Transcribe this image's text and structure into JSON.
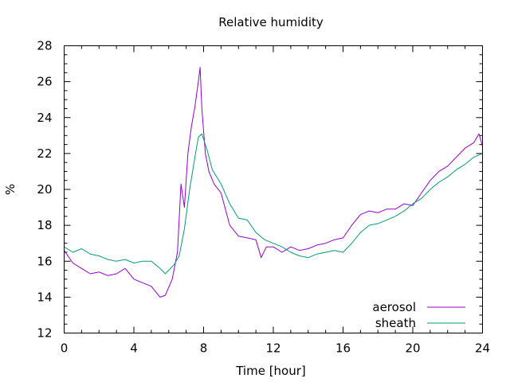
{
  "chart_data": {
    "type": "line",
    "title": "Relative humidity",
    "xlabel": "Time [hour]",
    "ylabel": "%",
    "xlim": [
      0,
      24
    ],
    "ylim": [
      12,
      28
    ],
    "xticks": [
      0,
      4,
      8,
      12,
      16,
      20,
      24
    ],
    "yticks": [
      12,
      14,
      16,
      18,
      20,
      22,
      24,
      26,
      28
    ],
    "grid": false,
    "legend_position": "bottom-right",
    "series": [
      {
        "name": "aerosol",
        "color": "#9400d3",
        "points": [
          [
            0.0,
            16.6
          ],
          [
            0.5,
            15.9
          ],
          [
            1.0,
            15.6
          ],
          [
            1.5,
            15.3
          ],
          [
            2.0,
            15.4
          ],
          [
            2.5,
            15.2
          ],
          [
            3.0,
            15.3
          ],
          [
            3.5,
            15.6
          ],
          [
            4.0,
            15.0
          ],
          [
            4.5,
            14.8
          ],
          [
            5.0,
            14.6
          ],
          [
            5.5,
            14.0
          ],
          [
            5.8,
            14.1
          ],
          [
            6.2,
            15.0
          ],
          [
            6.5,
            16.5
          ],
          [
            6.7,
            20.3
          ],
          [
            6.9,
            19.0
          ],
          [
            7.1,
            22.0
          ],
          [
            7.3,
            23.5
          ],
          [
            7.5,
            24.6
          ],
          [
            7.7,
            26.0
          ],
          [
            7.8,
            26.8
          ],
          [
            7.9,
            24.5
          ],
          [
            8.1,
            22.0
          ],
          [
            8.3,
            21.0
          ],
          [
            8.6,
            20.3
          ],
          [
            9.0,
            19.8
          ],
          [
            9.5,
            18.0
          ],
          [
            10.0,
            17.4
          ],
          [
            10.5,
            17.3
          ],
          [
            11.0,
            17.2
          ],
          [
            11.3,
            16.2
          ],
          [
            11.6,
            16.8
          ],
          [
            12.0,
            16.8
          ],
          [
            12.5,
            16.5
          ],
          [
            13.0,
            16.8
          ],
          [
            13.5,
            16.6
          ],
          [
            14.0,
            16.7
          ],
          [
            14.5,
            16.9
          ],
          [
            15.0,
            17.0
          ],
          [
            15.5,
            17.2
          ],
          [
            16.0,
            17.3
          ],
          [
            16.5,
            18.0
          ],
          [
            17.0,
            18.6
          ],
          [
            17.5,
            18.8
          ],
          [
            18.0,
            18.7
          ],
          [
            18.5,
            18.9
          ],
          [
            19.0,
            18.9
          ],
          [
            19.5,
            19.2
          ],
          [
            20.0,
            19.1
          ],
          [
            20.5,
            19.8
          ],
          [
            21.0,
            20.5
          ],
          [
            21.5,
            21.0
          ],
          [
            22.0,
            21.3
          ],
          [
            22.5,
            21.8
          ],
          [
            23.0,
            22.3
          ],
          [
            23.5,
            22.6
          ],
          [
            23.8,
            23.1
          ],
          [
            24.0,
            22.4
          ]
        ]
      },
      {
        "name": "sheath",
        "color": "#009e73",
        "points": [
          [
            0.0,
            16.8
          ],
          [
            0.5,
            16.5
          ],
          [
            1.0,
            16.7
          ],
          [
            1.5,
            16.4
          ],
          [
            2.0,
            16.3
          ],
          [
            2.5,
            16.1
          ],
          [
            3.0,
            16.0
          ],
          [
            3.5,
            16.1
          ],
          [
            4.0,
            15.9
          ],
          [
            4.5,
            16.0
          ],
          [
            5.0,
            16.0
          ],
          [
            5.5,
            15.6
          ],
          [
            5.8,
            15.3
          ],
          [
            6.0,
            15.5
          ],
          [
            6.3,
            15.8
          ],
          [
            6.6,
            16.3
          ],
          [
            6.9,
            17.8
          ],
          [
            7.2,
            20.0
          ],
          [
            7.5,
            21.8
          ],
          [
            7.7,
            22.9
          ],
          [
            7.9,
            23.1
          ],
          [
            8.2,
            22.2
          ],
          [
            8.5,
            21.1
          ],
          [
            9.0,
            20.3
          ],
          [
            9.5,
            19.2
          ],
          [
            10.0,
            18.4
          ],
          [
            10.5,
            18.3
          ],
          [
            11.0,
            17.6
          ],
          [
            11.5,
            17.2
          ],
          [
            12.0,
            17.0
          ],
          [
            12.5,
            16.8
          ],
          [
            13.0,
            16.5
          ],
          [
            13.5,
            16.3
          ],
          [
            14.0,
            16.2
          ],
          [
            14.5,
            16.4
          ],
          [
            15.0,
            16.5
          ],
          [
            15.5,
            16.6
          ],
          [
            16.0,
            16.5
          ],
          [
            16.5,
            17.0
          ],
          [
            17.0,
            17.6
          ],
          [
            17.5,
            18.0
          ],
          [
            18.0,
            18.1
          ],
          [
            18.5,
            18.3
          ],
          [
            19.0,
            18.5
          ],
          [
            19.5,
            18.8
          ],
          [
            20.0,
            19.2
          ],
          [
            20.5,
            19.5
          ],
          [
            21.0,
            20.0
          ],
          [
            21.5,
            20.4
          ],
          [
            22.0,
            20.7
          ],
          [
            22.5,
            21.1
          ],
          [
            23.0,
            21.4
          ],
          [
            23.5,
            21.8
          ],
          [
            24.0,
            22.0
          ]
        ]
      }
    ]
  }
}
